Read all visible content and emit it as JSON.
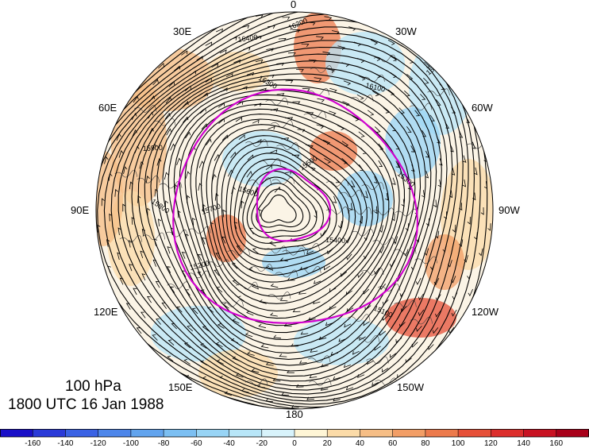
{
  "map": {
    "level": "100 hPa",
    "datetime": "1800 UTC 16 Jan 1988",
    "longitude_labels": {
      "top": "0",
      "upper_left": "30E",
      "upper_right": "30W",
      "left_upper": "60E",
      "right_upper": "60W",
      "left": "90E",
      "right": "90W",
      "left_lower": "120E",
      "right_lower": "120W",
      "lower_left": "150E",
      "lower_right": "150W",
      "bottom": "180"
    },
    "contour_labels": [
      "16500",
      "16400",
      "16300",
      "16200",
      "16100",
      "16000",
      "15900",
      "15800",
      "15700",
      "15600",
      "15500",
      "15400",
      "15300",
      "15200",
      "15100",
      "15900"
    ],
    "highlight_color": "#d000d0",
    "contour_color": "#000000"
  },
  "colorbar": {
    "ticks": [
      "-160",
      "-140",
      "-120",
      "-100",
      "-80",
      "-60",
      "-40",
      "-20",
      "0",
      "20",
      "40",
      "60",
      "80",
      "100",
      "120",
      "140",
      "160"
    ],
    "colors": [
      "#1a10c8",
      "#2a3ad8",
      "#3a62e4",
      "#4d86ea",
      "#62a4ee",
      "#7cbff2",
      "#98d4f5",
      "#b8e6f8",
      "#d8f3fb",
      "#fff6d6",
      "#fbdba8",
      "#f6be86",
      "#f29e66",
      "#ec7a4c",
      "#e65038",
      "#dc2e2c",
      "#c81222",
      "#a8001a"
    ]
  }
}
